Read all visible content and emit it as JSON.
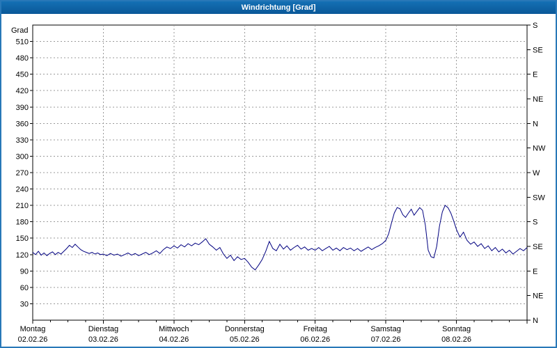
{
  "window": {
    "title": "Windrichtung [Grad]"
  },
  "colors": {
    "titlebar": "#0d62a8",
    "window_border": "#2878b8",
    "line": "#000080",
    "grid": "#999999",
    "axis": "#000000",
    "background": "#ffffff"
  },
  "chart_data": {
    "type": "line",
    "title": "Windrichtung [Grad]",
    "xlabel": "",
    "ylabel": "Grad",
    "ylim": [
      0,
      540
    ],
    "y_tick_step": 30,
    "y_tick_labels": [
      30,
      60,
      90,
      120,
      150,
      180,
      210,
      240,
      270,
      300,
      330,
      360,
      390,
      420,
      450,
      480,
      510
    ],
    "grid": true,
    "right_axis_labels": [
      {
        "value": 0,
        "label": "N"
      },
      {
        "value": 45,
        "label": "NE"
      },
      {
        "value": 90,
        "label": "E"
      },
      {
        "value": 135,
        "label": "SE"
      },
      {
        "value": 180,
        "label": "S"
      },
      {
        "value": 225,
        "label": "SW"
      },
      {
        "value": 270,
        "label": "W"
      },
      {
        "value": 315,
        "label": "NW"
      },
      {
        "value": 360,
        "label": "N"
      },
      {
        "value": 405,
        "label": "NE"
      },
      {
        "value": 450,
        "label": "E"
      },
      {
        "value": 495,
        "label": "SE"
      },
      {
        "value": 540,
        "label": "S"
      }
    ],
    "days": [
      {
        "name": "Montag",
        "date": "02.02.26"
      },
      {
        "name": "Dienstag",
        "date": "03.02.26"
      },
      {
        "name": "Mittwoch",
        "date": "04.02.26"
      },
      {
        "name": "Donnerstag",
        "date": "05.02.26"
      },
      {
        "name": "Freitag",
        "date": "06.02.26"
      },
      {
        "name": "Samstag",
        "date": "07.02.26"
      },
      {
        "name": "Sonntag",
        "date": "08.02.26"
      }
    ],
    "x_range_days": [
      0,
      7
    ],
    "series": [
      {
        "name": "Windrichtung",
        "color": "#000080",
        "points": [
          [
            0.0,
            124
          ],
          [
            0.04,
            120
          ],
          [
            0.08,
            126
          ],
          [
            0.12,
            119
          ],
          [
            0.16,
            123
          ],
          [
            0.2,
            118
          ],
          [
            0.24,
            122
          ],
          [
            0.28,
            125
          ],
          [
            0.32,
            120
          ],
          [
            0.36,
            124
          ],
          [
            0.4,
            121
          ],
          [
            0.44,
            126
          ],
          [
            0.48,
            131
          ],
          [
            0.52,
            137
          ],
          [
            0.56,
            133
          ],
          [
            0.6,
            139
          ],
          [
            0.64,
            134
          ],
          [
            0.68,
            129
          ],
          [
            0.72,
            126
          ],
          [
            0.76,
            124
          ],
          [
            0.8,
            122
          ],
          [
            0.84,
            124
          ],
          [
            0.88,
            121
          ],
          [
            0.92,
            123
          ],
          [
            0.96,
            120
          ],
          [
            1.0,
            121
          ],
          [
            1.05,
            118
          ],
          [
            1.1,
            122
          ],
          [
            1.15,
            119
          ],
          [
            1.2,
            121
          ],
          [
            1.25,
            117
          ],
          [
            1.3,
            120
          ],
          [
            1.35,
            123
          ],
          [
            1.4,
            119
          ],
          [
            1.45,
            122
          ],
          [
            1.5,
            118
          ],
          [
            1.55,
            121
          ],
          [
            1.6,
            124
          ],
          [
            1.65,
            120
          ],
          [
            1.7,
            123
          ],
          [
            1.75,
            127
          ],
          [
            1.8,
            122
          ],
          [
            1.85,
            129
          ],
          [
            1.9,
            134
          ],
          [
            1.95,
            131
          ],
          [
            2.0,
            136
          ],
          [
            2.05,
            132
          ],
          [
            2.1,
            138
          ],
          [
            2.15,
            134
          ],
          [
            2.2,
            140
          ],
          [
            2.25,
            136
          ],
          [
            2.3,
            141
          ],
          [
            2.35,
            138
          ],
          [
            2.4,
            143
          ],
          [
            2.45,
            149
          ],
          [
            2.5,
            139
          ],
          [
            2.55,
            134
          ],
          [
            2.6,
            128
          ],
          [
            2.65,
            133
          ],
          [
            2.7,
            121
          ],
          [
            2.75,
            113
          ],
          [
            2.8,
            119
          ],
          [
            2.85,
            109
          ],
          [
            2.9,
            116
          ],
          [
            2.95,
            111
          ],
          [
            3.0,
            113
          ],
          [
            3.05,
            106
          ],
          [
            3.1,
            97
          ],
          [
            3.15,
            92
          ],
          [
            3.2,
            101
          ],
          [
            3.25,
            111
          ],
          [
            3.3,
            126
          ],
          [
            3.35,
            144
          ],
          [
            3.4,
            131
          ],
          [
            3.45,
            127
          ],
          [
            3.5,
            139
          ],
          [
            3.55,
            130
          ],
          [
            3.6,
            136
          ],
          [
            3.65,
            128
          ],
          [
            3.7,
            133
          ],
          [
            3.75,
            137
          ],
          [
            3.8,
            130
          ],
          [
            3.85,
            134
          ],
          [
            3.9,
            128
          ],
          [
            3.95,
            131
          ],
          [
            4.0,
            128
          ],
          [
            4.05,
            133
          ],
          [
            4.1,
            127
          ],
          [
            4.15,
            131
          ],
          [
            4.2,
            135
          ],
          [
            4.25,
            128
          ],
          [
            4.3,
            132
          ],
          [
            4.35,
            127
          ],
          [
            4.4,
            133
          ],
          [
            4.45,
            129
          ],
          [
            4.5,
            132
          ],
          [
            4.55,
            127
          ],
          [
            4.6,
            131
          ],
          [
            4.65,
            126
          ],
          [
            4.7,
            130
          ],
          [
            4.75,
            134
          ],
          [
            4.8,
            129
          ],
          [
            4.85,
            133
          ],
          [
            4.9,
            136
          ],
          [
            4.95,
            140
          ],
          [
            5.0,
            146
          ],
          [
            5.04,
            158
          ],
          [
            5.08,
            178
          ],
          [
            5.12,
            196
          ],
          [
            5.16,
            206
          ],
          [
            5.2,
            204
          ],
          [
            5.24,
            193
          ],
          [
            5.28,
            188
          ],
          [
            5.32,
            196
          ],
          [
            5.36,
            203
          ],
          [
            5.4,
            192
          ],
          [
            5.44,
            199
          ],
          [
            5.48,
            206
          ],
          [
            5.52,
            201
          ],
          [
            5.56,
            174
          ],
          [
            5.6,
            128
          ],
          [
            5.64,
            116
          ],
          [
            5.68,
            114
          ],
          [
            5.72,
            135
          ],
          [
            5.76,
            172
          ],
          [
            5.8,
            198
          ],
          [
            5.84,
            210
          ],
          [
            5.88,
            206
          ],
          [
            5.92,
            196
          ],
          [
            5.96,
            182
          ],
          [
            6.0,
            166
          ],
          [
            6.05,
            152
          ],
          [
            6.1,
            161
          ],
          [
            6.15,
            146
          ],
          [
            6.2,
            139
          ],
          [
            6.25,
            143
          ],
          [
            6.3,
            135
          ],
          [
            6.35,
            140
          ],
          [
            6.4,
            131
          ],
          [
            6.45,
            136
          ],
          [
            6.5,
            127
          ],
          [
            6.55,
            133
          ],
          [
            6.6,
            125
          ],
          [
            6.65,
            130
          ],
          [
            6.7,
            123
          ],
          [
            6.75,
            128
          ],
          [
            6.8,
            121
          ],
          [
            6.85,
            126
          ],
          [
            6.9,
            131
          ],
          [
            6.95,
            127
          ],
          [
            7.0,
            133
          ]
        ]
      }
    ]
  }
}
